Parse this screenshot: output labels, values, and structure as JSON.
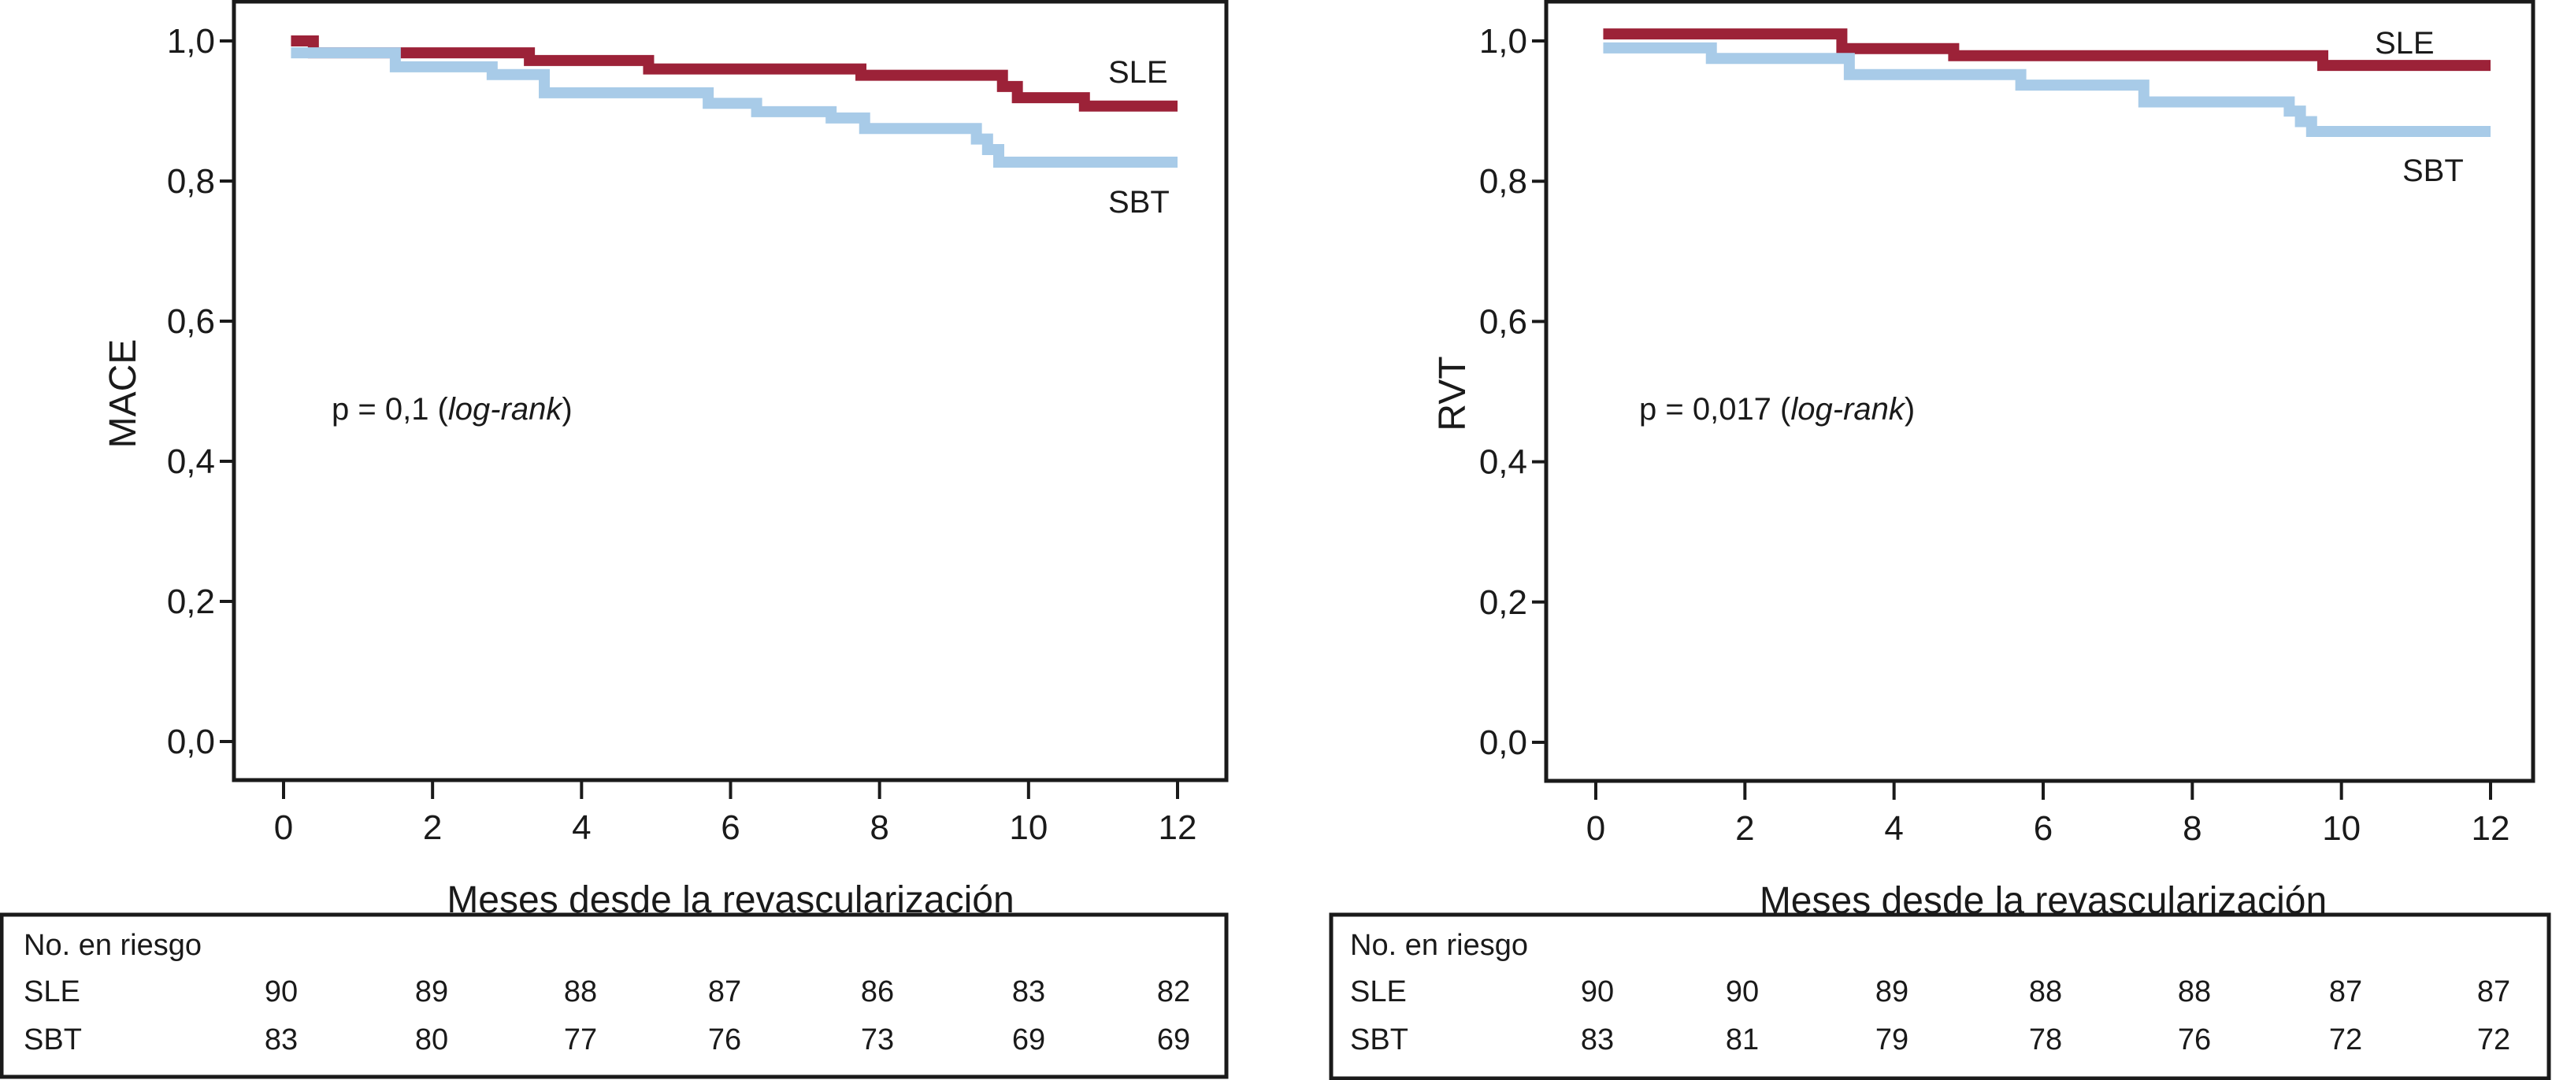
{
  "chart_data": [
    {
      "type": "line",
      "subtype": "kaplan-meier-step",
      "ylabel": "MACE",
      "xlabel": "Meses desde la revascularización",
      "xlim": [
        0,
        12
      ],
      "ylim": [
        0.0,
        1.0
      ],
      "xticks": [
        "0",
        "2",
        "4",
        "6",
        "8",
        "10",
        "12"
      ],
      "yticks": [
        "0,0",
        "0,2",
        "0,4",
        "0,6",
        "0,8",
        "1,0"
      ],
      "ytick_values": [
        0.0,
        0.2,
        0.4,
        0.6,
        0.8,
        1.0
      ],
      "xtick_values": [
        0,
        2,
        4,
        6,
        8,
        10,
        12
      ],
      "annotation": {
        "prefix": "p = 0,1 (",
        "italic": "log-rank",
        "suffix": ")"
      },
      "grid": false,
      "series": [
        {
          "name": "SLE",
          "color": "#9c2238",
          "steps": [
            [
              0.1,
              1.0
            ],
            [
              0.4,
              0.983
            ],
            [
              3.3,
              0.972
            ],
            [
              4.9,
              0.96
            ],
            [
              7.75,
              0.951
            ],
            [
              9.65,
              0.935
            ],
            [
              9.85,
              0.919
            ],
            [
              10.75,
              0.907
            ]
          ],
          "end": 12
        },
        {
          "name": "SBT",
          "color": "#a8cbe8",
          "steps": [
            [
              0.1,
              0.983
            ],
            [
              1.5,
              0.963
            ],
            [
              2.8,
              0.952
            ],
            [
              3.5,
              0.926
            ],
            [
              5.7,
              0.911
            ],
            [
              6.35,
              0.899
            ],
            [
              7.35,
              0.89
            ],
            [
              7.8,
              0.875
            ],
            [
              9.3,
              0.86
            ],
            [
              9.45,
              0.845
            ],
            [
              9.6,
              0.827
            ]
          ],
          "end": 12
        }
      ],
      "risk_table": {
        "title": "No. en riesgo",
        "rows": [
          {
            "label": "SLE",
            "values": [
              "90",
              "89",
              "88",
              "87",
              "86",
              "83",
              "82"
            ]
          },
          {
            "label": "SBT",
            "values": [
              "83",
              "80",
              "77",
              "76",
              "73",
              "69",
              "69"
            ]
          }
        ]
      }
    },
    {
      "type": "line",
      "subtype": "kaplan-meier-step",
      "ylabel": "RVT",
      "xlabel": "Meses desde la revascularización",
      "xlim": [
        0,
        12
      ],
      "ylim": [
        0.0,
        1.0
      ],
      "xticks": [
        "0",
        "2",
        "4",
        "6",
        "8",
        "10",
        "12"
      ],
      "yticks": [
        "0,0",
        "0,2",
        "0,4",
        "0,6",
        "0,8",
        "1,0"
      ],
      "ytick_values": [
        0.0,
        0.2,
        0.4,
        0.6,
        0.8,
        1.0
      ],
      "xtick_values": [
        0,
        2,
        4,
        6,
        8,
        10,
        12
      ],
      "annotation": {
        "prefix": "p = 0,017 (",
        "italic": "log-rank",
        "suffix": ")"
      },
      "grid": false,
      "series": [
        {
          "name": "SLE",
          "color": "#9c2238",
          "steps": [
            [
              0.1,
              1.01
            ],
            [
              3.3,
              0.989
            ],
            [
              4.8,
              0.979
            ],
            [
              9.75,
              0.965
            ]
          ],
          "end": 12
        },
        {
          "name": "SBT",
          "color": "#a8cbe8",
          "steps": [
            [
              0.1,
              0.99
            ],
            [
              1.55,
              0.975
            ],
            [
              3.4,
              0.952
            ],
            [
              5.7,
              0.937
            ],
            [
              7.35,
              0.913
            ],
            [
              9.3,
              0.9
            ],
            [
              9.45,
              0.885
            ],
            [
              9.6,
              0.871
            ]
          ],
          "end": 12
        }
      ],
      "risk_table": {
        "title": "No. en riesgo",
        "rows": [
          {
            "label": "SLE",
            "values": [
              "90",
              "90",
              "89",
              "88",
              "88",
              "87",
              "87"
            ]
          },
          {
            "label": "SBT",
            "values": [
              "83",
              "81",
              "79",
              "78",
              "76",
              "72",
              "72"
            ]
          }
        ]
      }
    }
  ]
}
